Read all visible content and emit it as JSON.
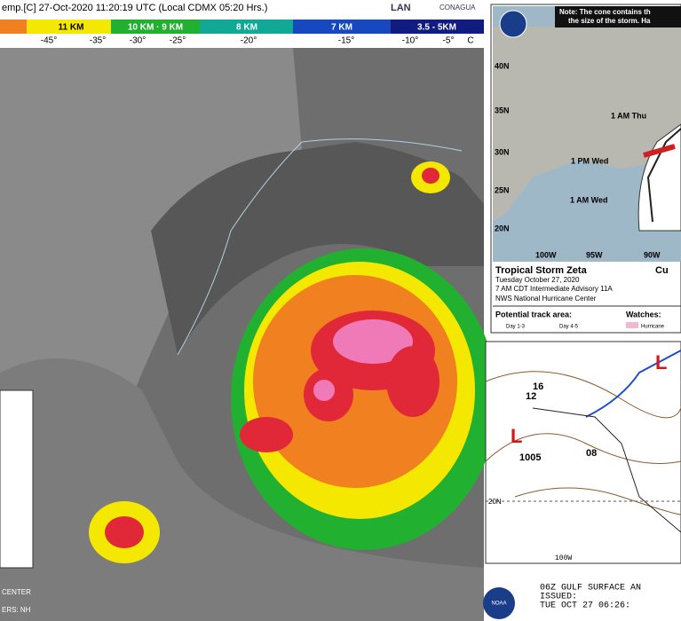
{
  "satellite": {
    "header": "emp.[C] 27-Oct-2020 11:20:19 UTC (Local CDMX 05:20 Hrs.)",
    "logo": "LAN",
    "agency": "CONAGUA",
    "altitudes": [
      "11 KM",
      "10 KM · 9 KM",
      "8 KM",
      "7 KM",
      "3.5 - 5KM"
    ],
    "temperatures": [
      "-45°",
      "-35°",
      "-30°",
      "-25°",
      "-20°",
      "-15°",
      "-10°",
      "-5°",
      "C"
    ],
    "inset_texts": [
      "CENTER",
      "ERS: NH"
    ]
  },
  "nhc_map": {
    "note": [
      "Note: The cone contains th",
      "the size of the storm. Ha"
    ],
    "latitudes": [
      "40N",
      "35N",
      "30N",
      "25N",
      "20N"
    ],
    "longitudes": [
      "100W",
      "95W",
      "90W"
    ],
    "points": [
      "1 AM Thu",
      "1 PM Wed",
      "1 AM Wed"
    ],
    "title": "Tropical Storm Zeta",
    "date": "Tuesday October 27, 2020",
    "advisory": "7 AM CDT Intermediate Advisory 11A",
    "center": "NWS National Hurricane Center",
    "legend_title": "Potential track area:",
    "legend_items": [
      "Day 1-3",
      "Day 4-5"
    ],
    "watches": "Watches:",
    "watch_item": "Hurricane",
    "current": "Cu"
  },
  "surface_map": {
    "low_pressure": "1005",
    "isobars": [
      "12",
      "16",
      "08"
    ],
    "latitude": "20N",
    "longitude": "100W",
    "product": "06Z GULF SURFACE AN",
    "issued": "ISSUED:",
    "time": "TUE OCT 27 06:26:",
    "logo": "NOAA"
  }
}
